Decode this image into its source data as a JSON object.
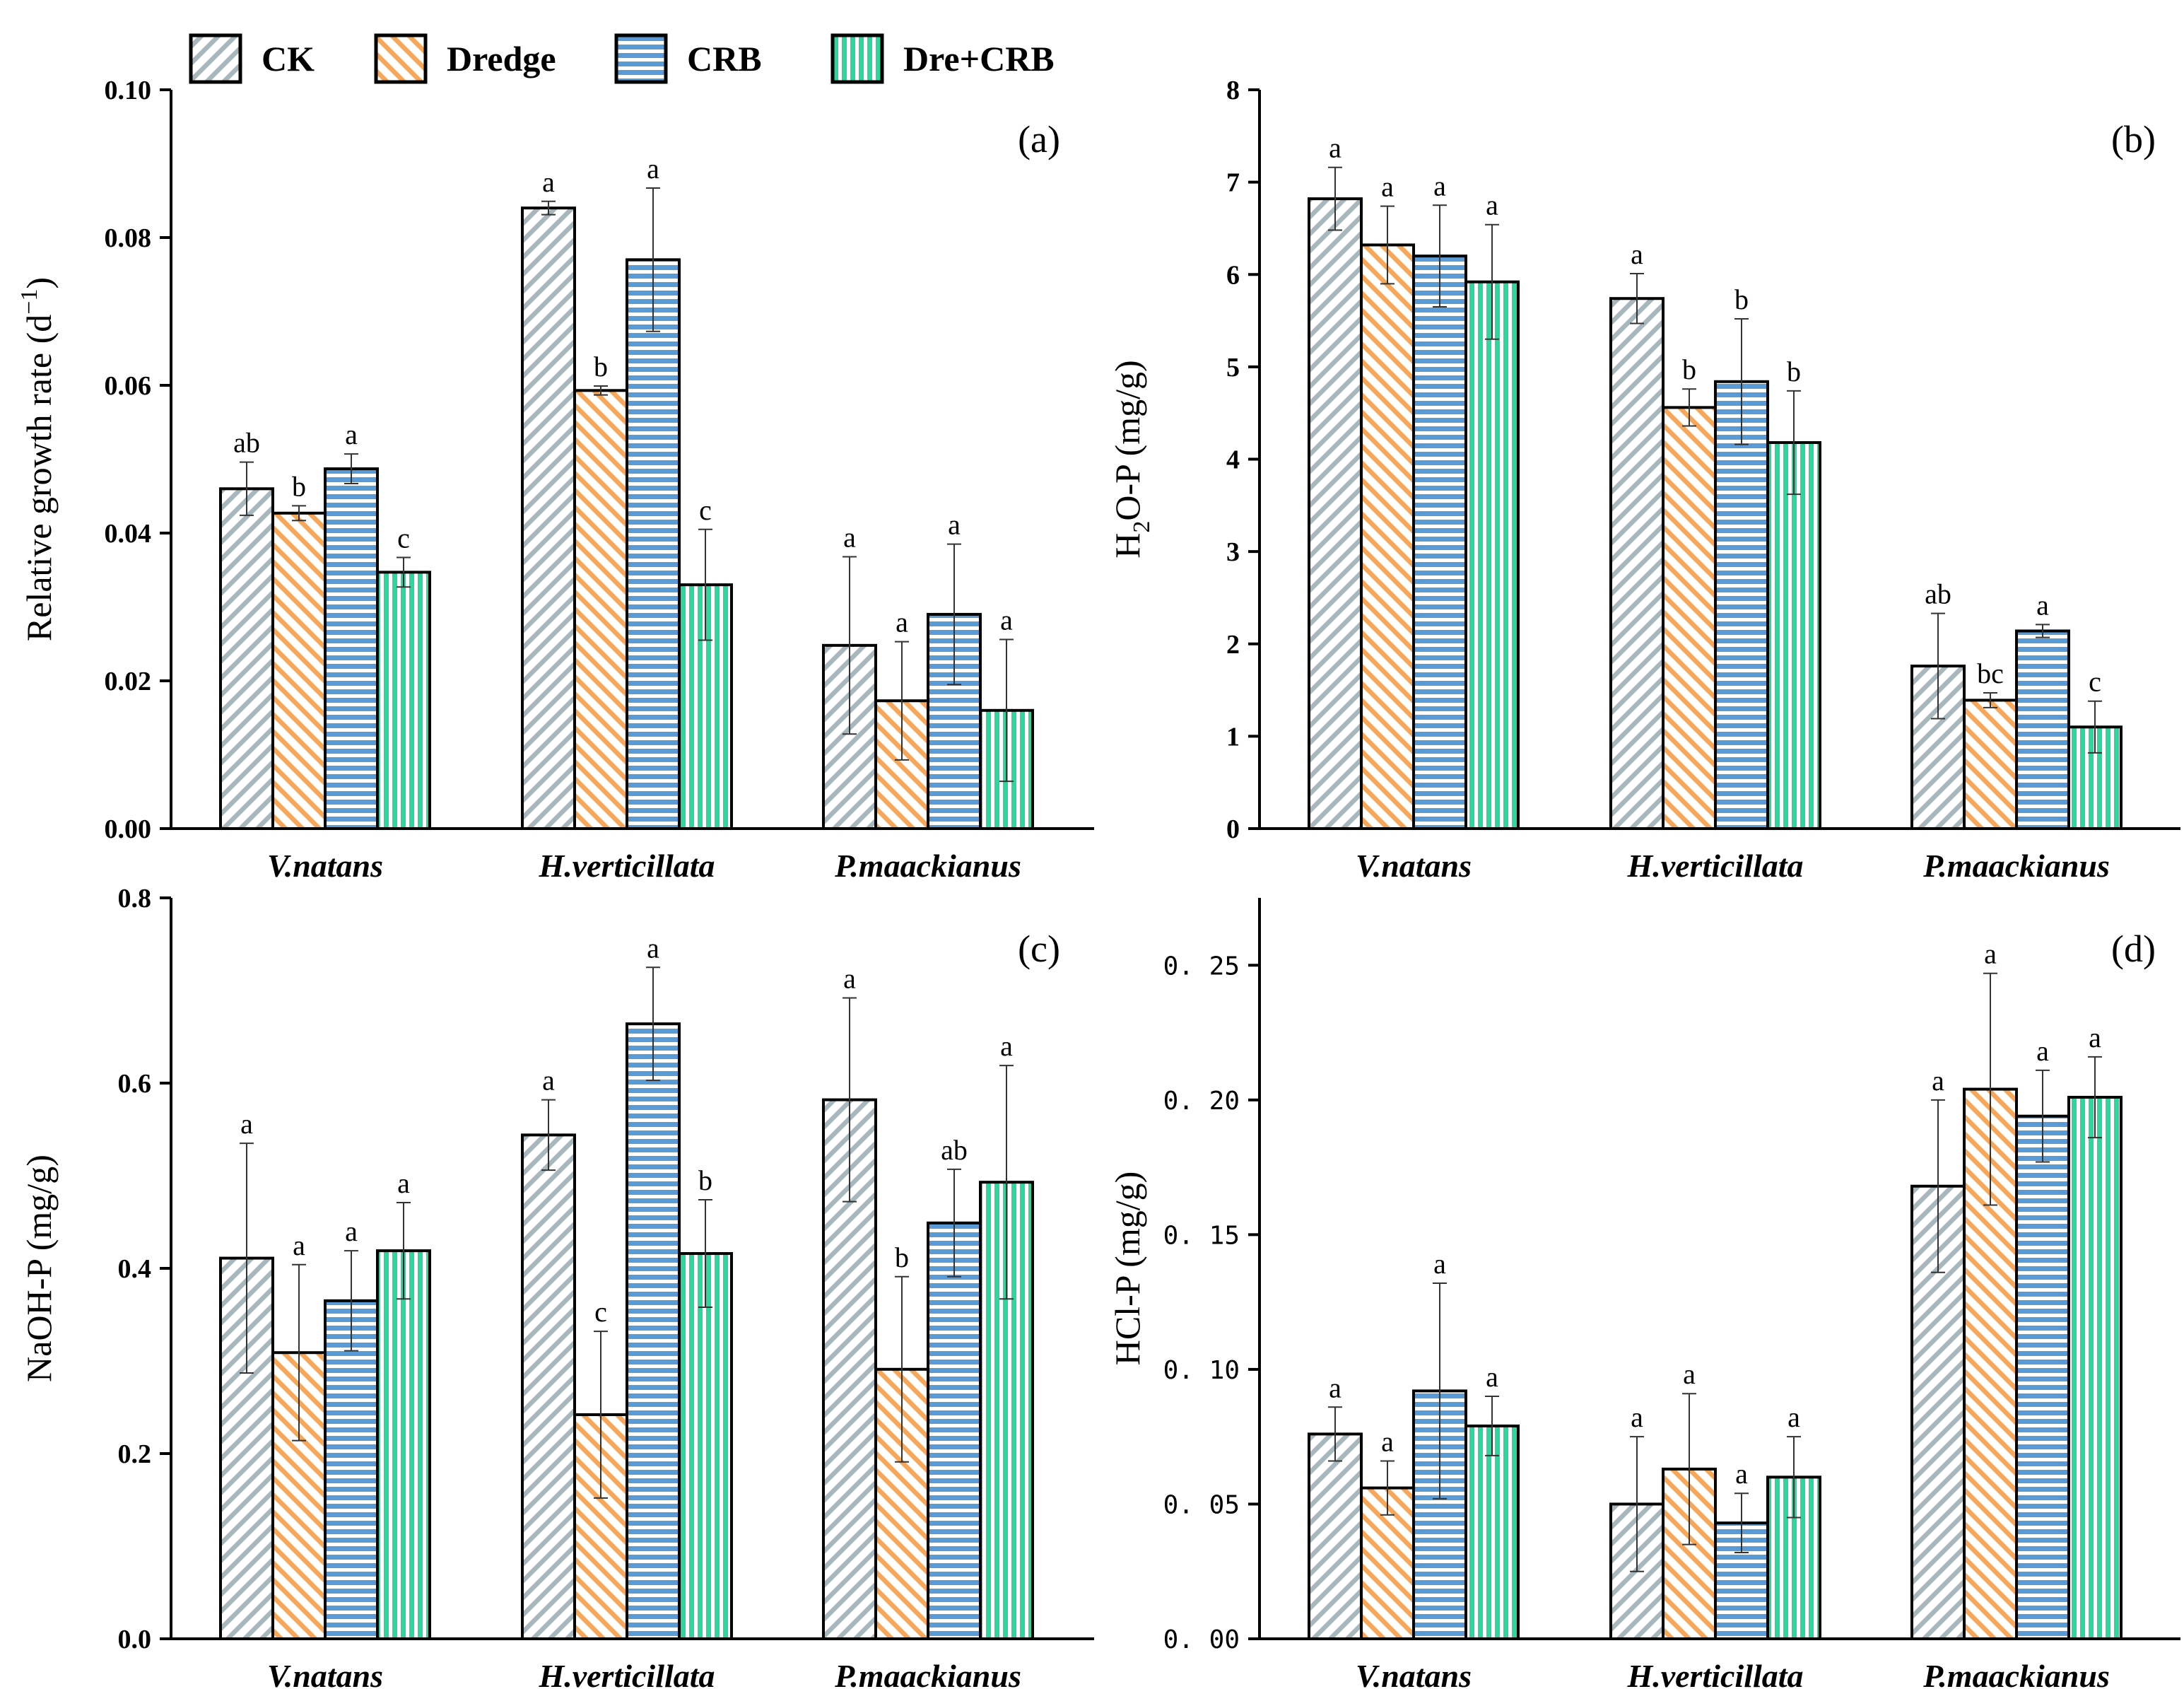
{
  "legend": [
    {
      "label": "CK",
      "pattern": "diag-r",
      "color": "#a8b6be"
    },
    {
      "label": "Dredge",
      "pattern": "diag-l",
      "color": "#f5a85c"
    },
    {
      "label": "CRB",
      "pattern": "horiz",
      "color": "#5b9bd5"
    },
    {
      "label": "Dre+CRB",
      "pattern": "vert",
      "color": "#2fd69c"
    }
  ],
  "chart_data": [
    {
      "type": "bar",
      "panel": "(a)",
      "title": "",
      "xlabel": "",
      "ylabel": "Relative growth rate (d",
      "ylabel_sup": "−1",
      "ylabel_tail": ")",
      "categories": [
        "V.natans",
        "H.verticillata",
        "P.maackianus"
      ],
      "ylim": [
        0,
        0.1
      ],
      "yticks": [
        "0.00",
        "0.02",
        "0.04",
        "0.06",
        "0.08",
        "0.10"
      ],
      "series": [
        {
          "name": "CK",
          "values": [
            0.046,
            0.084,
            0.0248
          ],
          "errors": [
            0.0036,
            0.0009,
            0.012
          ],
          "letters": [
            "ab",
            "a",
            "a"
          ]
        },
        {
          "name": "Dredge",
          "values": [
            0.0427,
            0.0593,
            0.0173
          ],
          "errors": [
            0.001,
            0.0006,
            0.008
          ],
          "letters": [
            "b",
            "b",
            "a"
          ]
        },
        {
          "name": "CRB",
          "values": [
            0.0487,
            0.077,
            0.029
          ],
          "errors": [
            0.002,
            0.0097,
            0.0095
          ],
          "letters": [
            "a",
            "a",
            "a"
          ]
        },
        {
          "name": "Dre+CRB",
          "values": [
            0.0347,
            0.033,
            0.016
          ],
          "errors": [
            0.002,
            0.0075,
            0.0096
          ],
          "letters": [
            "c",
            "c",
            "a"
          ]
        }
      ]
    },
    {
      "type": "bar",
      "panel": "(b)",
      "title": "",
      "xlabel": "",
      "ylabel": "H",
      "ylabel_sub": "2",
      "ylabel_tail": "O-P (mg/g)",
      "categories": [
        "V.natans",
        "H.verticillata",
        "P.maackianus"
      ],
      "ylim": [
        0,
        8
      ],
      "yticks": [
        "0",
        "1",
        "2",
        "3",
        "4",
        "5",
        "6",
        "7",
        "8"
      ],
      "series": [
        {
          "name": "CK",
          "values": [
            6.82,
            5.74,
            1.76
          ],
          "errors": [
            0.34,
            0.27,
            0.57
          ],
          "letters": [
            "a",
            "a",
            "ab"
          ]
        },
        {
          "name": "Dredge",
          "values": [
            6.32,
            4.56,
            1.39
          ],
          "errors": [
            0.42,
            0.2,
            0.08
          ],
          "letters": [
            "a",
            "b",
            "bc"
          ]
        },
        {
          "name": "CRB",
          "values": [
            6.2,
            4.84,
            2.14
          ],
          "errors": [
            0.55,
            0.68,
            0.07
          ],
          "letters": [
            "a",
            "b",
            "a"
          ]
        },
        {
          "name": "Dre+CRB",
          "values": [
            5.92,
            4.18,
            1.1
          ],
          "errors": [
            0.62,
            0.56,
            0.28
          ],
          "letters": [
            "a",
            "b",
            "c"
          ]
        }
      ]
    },
    {
      "type": "bar",
      "panel": "(c)",
      "title": "",
      "xlabel": "",
      "ylabel": "NaOH-P (mg/g)",
      "categories": [
        "V.natans",
        "H.verticillata",
        "P.maackianus"
      ],
      "ylim": [
        0,
        0.8
      ],
      "yticks": [
        "0.0",
        "0.2",
        "0.4",
        "0.6",
        "0.8"
      ],
      "series": [
        {
          "name": "CK",
          "values": [
            0.411,
            0.544,
            0.582
          ],
          "errors": [
            0.124,
            0.038,
            0.11
          ],
          "letters": [
            "a",
            "a",
            "a"
          ]
        },
        {
          "name": "Dredge",
          "values": [
            0.309,
            0.242,
            0.291
          ],
          "errors": [
            0.095,
            0.09,
            0.1
          ],
          "letters": [
            "a",
            "c",
            "b"
          ]
        },
        {
          "name": "CRB",
          "values": [
            0.365,
            0.664,
            0.449
          ],
          "errors": [
            0.054,
            0.061,
            0.058
          ],
          "letters": [
            "a",
            "a",
            "ab"
          ]
        },
        {
          "name": "Dre+CRB",
          "values": [
            0.419,
            0.416,
            0.493
          ],
          "errors": [
            0.052,
            0.058,
            0.126
          ],
          "letters": [
            "a",
            "b",
            "a"
          ]
        }
      ]
    },
    {
      "type": "bar",
      "panel": "(d)",
      "title": "",
      "xlabel": "",
      "ylabel": "HCl-P (mg/g)",
      "categories": [
        "V.natans",
        "H.verticillata",
        "P.maackianus"
      ],
      "ylim": [
        0,
        0.275
      ],
      "yticks": [
        "0. 00",
        "0. 05",
        "0. 10",
        "0. 15",
        "0. 20",
        "0. 25"
      ],
      "series": [
        {
          "name": "CK",
          "values": [
            0.076,
            0.05,
            0.168
          ],
          "errors": [
            0.01,
            0.025,
            0.032
          ],
          "letters": [
            "a",
            "a",
            "a"
          ]
        },
        {
          "name": "Dredge",
          "values": [
            0.056,
            0.063,
            0.204
          ],
          "errors": [
            0.01,
            0.028,
            0.043
          ],
          "letters": [
            "a",
            "a",
            "a"
          ]
        },
        {
          "name": "CRB",
          "values": [
            0.092,
            0.043,
            0.194
          ],
          "errors": [
            0.04,
            0.011,
            0.017
          ],
          "letters": [
            "a",
            "a",
            "a"
          ]
        },
        {
          "name": "Dre+CRB",
          "values": [
            0.079,
            0.06,
            0.201
          ],
          "errors": [
            0.011,
            0.015,
            0.015
          ],
          "letters": [
            "a",
            "a",
            "a"
          ]
        }
      ]
    }
  ]
}
